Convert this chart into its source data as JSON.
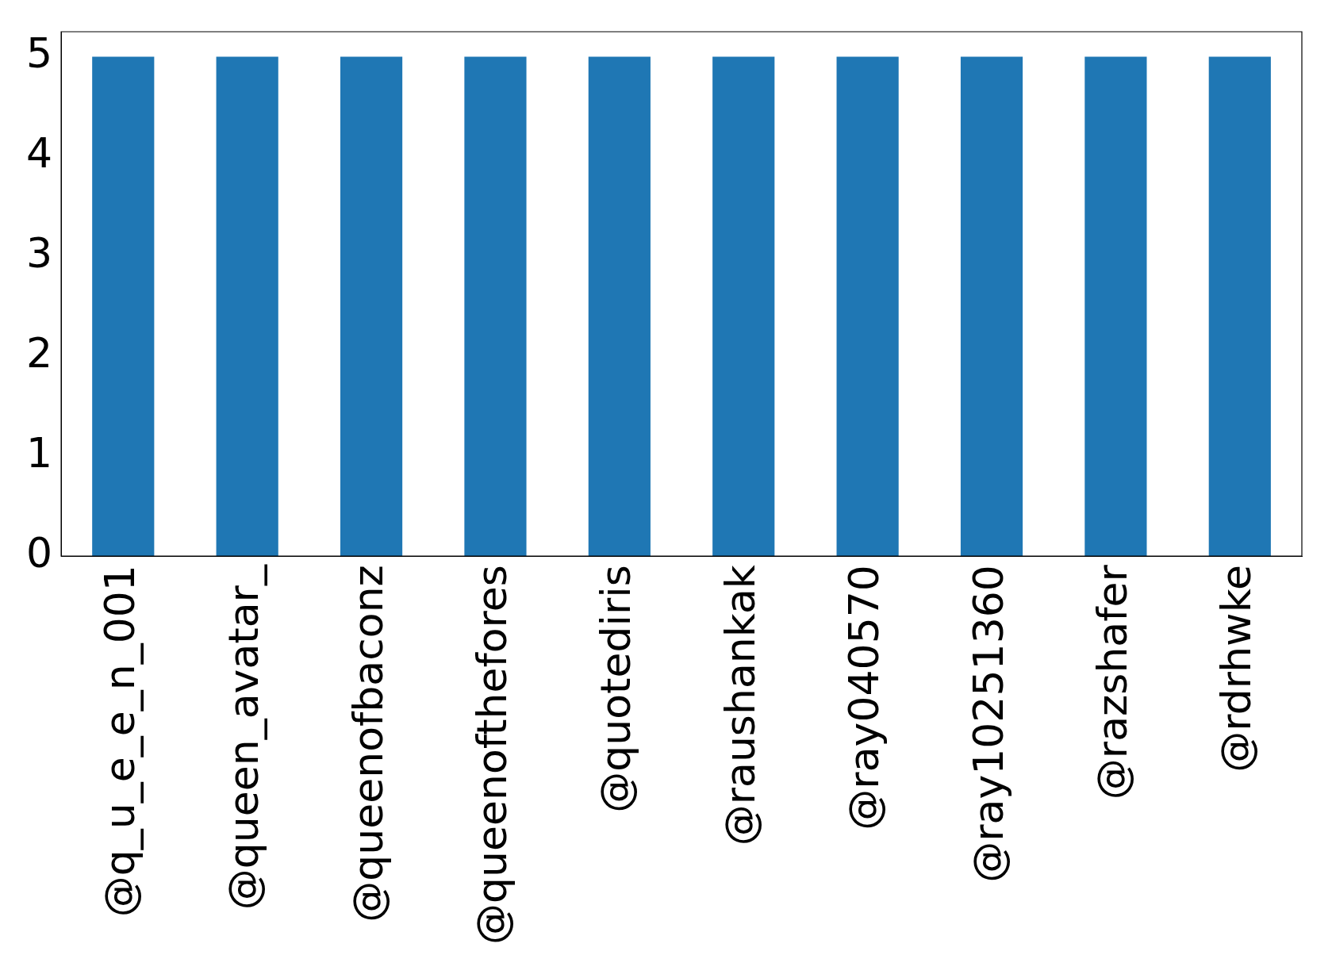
{
  "chart_data": {
    "type": "bar",
    "categories": [
      "@q_u_e_e_n_001",
      "@queen_avatar_",
      "@queenofbaconz",
      "@queenofthefores",
      "@quotediris",
      "@raushankak",
      "@ray040570",
      "@ray10251360",
      "@razshafer",
      "@rdrhwke"
    ],
    "values": [
      5,
      5,
      5,
      5,
      5,
      5,
      5,
      5,
      5,
      5
    ],
    "color": "#1f77b4",
    "ylim": [
      0,
      5.25
    ],
    "yticks": [
      0,
      1,
      2,
      3,
      4,
      5
    ],
    "grid": false,
    "legend": false
  }
}
